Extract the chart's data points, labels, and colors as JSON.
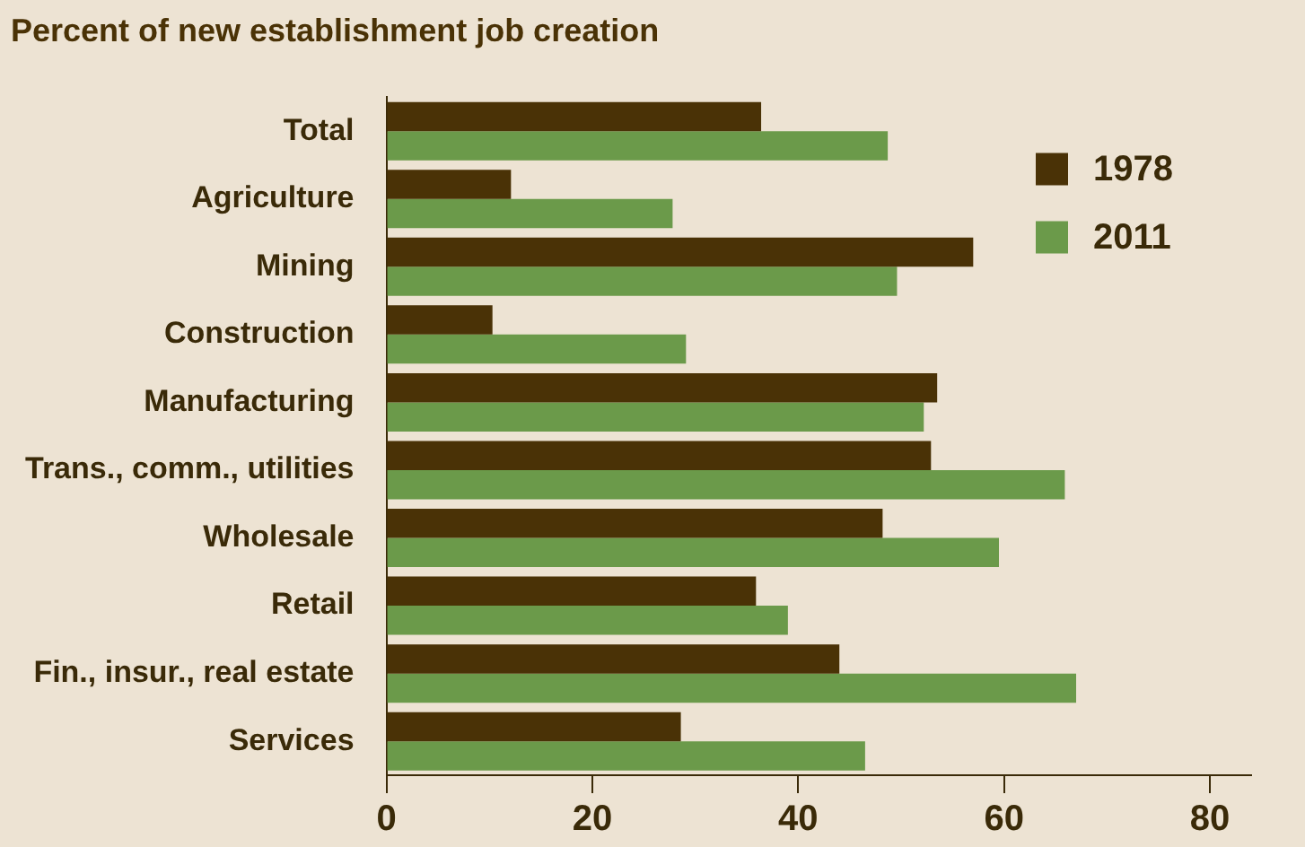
{
  "chart_data": {
    "type": "bar",
    "orientation": "horizontal",
    "title": "Percent of new establishment job creation",
    "categories": [
      "Total",
      "Agriculture",
      "Mining",
      "Construction",
      "Manufacturing",
      "Trans., comm., utilities",
      "Wholesale",
      "Retail",
      "Fin., insur., real estate",
      "Services"
    ],
    "series": [
      {
        "name": "1978",
        "color": "#4a3206",
        "values": [
          36.4,
          12.1,
          57,
          10.3,
          53.5,
          52.9,
          48.2,
          35.9,
          44,
          28.6
        ]
      },
      {
        "name": "2011",
        "color": "#6b9a4a",
        "values": [
          48.7,
          27.8,
          49.6,
          29.1,
          52.2,
          65.9,
          59.5,
          39,
          67,
          46.5
        ]
      }
    ],
    "xlim": [
      0,
      84
    ],
    "xticks": [
      0,
      20,
      40,
      60,
      80
    ],
    "grid": false,
    "legend": "top right"
  }
}
